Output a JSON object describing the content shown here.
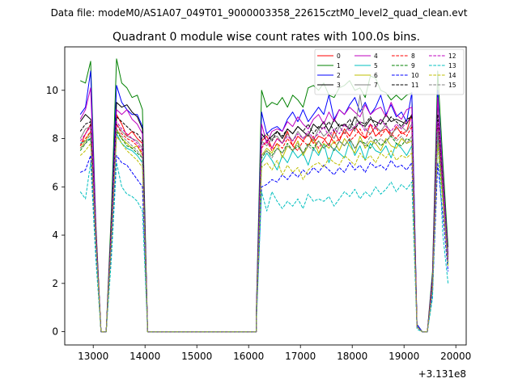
{
  "figure": {
    "suptitle": "Data file: modeM0/AS1A07_049T01_9000003358_22615cztM0_level2_quad_clean.evt",
    "offset_text": "+3.131e8"
  },
  "chart_data": {
    "type": "line",
    "title": "Quadrant 0 module wise count rates with 100.0s bins.",
    "xlabel": "",
    "ylabel": "",
    "x_offset": 313100000,
    "xlim": [
      12450,
      20200
    ],
    "ylim": [
      -0.55,
      11.8
    ],
    "xticks": [
      13000,
      14000,
      15000,
      16000,
      17000,
      18000,
      19000,
      20000
    ],
    "xtick_labels": [
      "13000",
      "14000",
      "15000",
      "16000",
      "17000",
      "18000",
      "19000",
      "20000"
    ],
    "yticks": [
      0,
      2,
      4,
      6,
      8,
      10
    ],
    "ytick_labels": [
      "0",
      "2",
      "4",
      "6",
      "8",
      "10"
    ],
    "x_segments": [
      [
        12750,
        12850,
        12950,
        13050,
        13150,
        13250,
        13350,
        13450,
        13550,
        13650,
        13750,
        13850,
        13950,
        14050
      ],
      [
        14050,
        14150,
        14250,
        14350,
        14450,
        14550,
        14650,
        14750,
        14850,
        14950,
        15050,
        15150,
        15250,
        15350,
        15450,
        15550,
        15650,
        15750,
        15850,
        15950,
        16050,
        16150
      ],
      [
        16150,
        16250,
        16350,
        16450,
        16550,
        16650,
        16750,
        16850,
        16950,
        17050,
        17150,
        17250,
        17350,
        17450,
        17550,
        17650,
        17750,
        17850,
        17950,
        18050,
        18150,
        18250,
        18350,
        18450,
        18550,
        18650,
        18750,
        18850,
        18950,
        19050,
        19150,
        19250,
        19350,
        19450,
        19550,
        19650,
        19750,
        19850
      ]
    ],
    "legend": {
      "location": "upper right",
      "ncol": 4
    },
    "series": [
      {
        "name": "0",
        "color": "#ff0000",
        "dash": "solid",
        "seg1": [
          7.7,
          8.2,
          8.6,
          4.0,
          0.0,
          0.0,
          4.0,
          9.0,
          8.6,
          8.1,
          8.3,
          8.0,
          7.8,
          0.0
        ],
        "seg3": [
          0.6,
          7.9,
          8.1,
          7.6,
          8.0,
          7.8,
          8.3,
          7.7,
          8.1,
          7.9,
          8.2,
          7.8,
          8.1,
          8.0,
          7.7,
          8.3,
          7.9,
          8.4,
          8.1,
          8.5,
          8.2,
          8.0,
          8.6,
          8.1,
          8.3,
          8.4,
          8.1,
          8.5,
          8.2,
          8.3,
          9.0,
          0.2,
          0.0,
          0.0,
          2.0,
          8.6,
          6.0,
          3.0
        ]
      },
      {
        "name": "1",
        "color": "#008000",
        "dash": "solid",
        "seg1": [
          10.4,
          10.3,
          11.2,
          4.5,
          0.0,
          0.0,
          5.0,
          11.3,
          10.3,
          10.1,
          9.7,
          9.8,
          9.2,
          0.0
        ],
        "seg3": [
          1.0,
          10.0,
          9.3,
          9.5,
          9.4,
          9.7,
          9.3,
          9.8,
          9.6,
          9.3,
          10.1,
          10.2,
          10.0,
          10.3,
          9.8,
          9.7,
          10.1,
          10.2,
          10.4,
          10.0,
          10.1,
          9.7,
          10.6,
          10.5,
          10.0,
          9.9,
          9.6,
          9.8,
          9.6,
          9.8,
          9.9,
          0.3,
          0.0,
          0.0,
          2.5,
          10.8,
          7.0,
          3.5
        ]
      },
      {
        "name": "2",
        "color": "#0000ff",
        "dash": "solid",
        "seg1": [
          9.0,
          9.3,
          10.8,
          4.3,
          0.0,
          0.0,
          4.5,
          10.2,
          9.5,
          9.2,
          9.0,
          9.0,
          8.5,
          0.0
        ],
        "seg3": [
          0.9,
          9.1,
          8.2,
          8.4,
          8.5,
          8.3,
          8.8,
          9.1,
          8.7,
          9.2,
          8.7,
          9.0,
          9.3,
          9.0,
          9.8,
          8.8,
          9.2,
          9.0,
          9.4,
          9.7,
          9.1,
          9.5,
          9.0,
          9.3,
          9.8,
          9.0,
          9.4,
          8.9,
          9.1,
          8.7,
          9.9,
          0.3,
          0.0,
          0.0,
          2.3,
          10.0,
          6.5,
          3.2
        ]
      },
      {
        "name": "3",
        "color": "#000000",
        "dash": "solid",
        "seg1": [
          8.7,
          9.0,
          8.8,
          4.2,
          0.0,
          0.0,
          4.4,
          9.5,
          9.3,
          9.4,
          9.1,
          8.9,
          8.4,
          0.0
        ],
        "seg3": [
          0.8,
          8.2,
          7.9,
          8.1,
          8.3,
          8.0,
          8.4,
          8.2,
          8.5,
          8.3,
          8.1,
          8.6,
          8.4,
          8.7,
          8.3,
          8.8,
          8.5,
          8.6,
          8.4,
          8.9,
          8.6,
          8.5,
          8.8,
          8.7,
          8.6,
          9.0,
          8.7,
          8.8,
          8.7,
          8.6,
          9.0,
          0.2,
          0.0,
          0.0,
          2.2,
          9.6,
          6.3,
          3.1
        ]
      },
      {
        "name": "4",
        "color": "#bf00bf",
        "dash": "solid",
        "seg1": [
          8.8,
          9.2,
          10.1,
          4.3,
          0.0,
          0.0,
          4.4,
          9.2,
          9.0,
          9.2,
          8.8,
          8.6,
          8.2,
          0.0
        ],
        "seg3": [
          0.8,
          8.6,
          7.8,
          8.3,
          8.4,
          8.3,
          8.7,
          8.5,
          8.9,
          8.6,
          8.4,
          8.8,
          9.0,
          8.6,
          9.1,
          8.7,
          9.2,
          9.0,
          9.3,
          9.1,
          8.9,
          9.4,
          9.0,
          9.2,
          9.3,
          8.9,
          9.5,
          9.0,
          8.8,
          9.2,
          9.3,
          0.2,
          0.0,
          0.0,
          2.2,
          9.7,
          6.4,
          3.1
        ]
      },
      {
        "name": "5",
        "color": "#00bfbf",
        "dash": "solid",
        "seg1": [
          7.8,
          7.9,
          8.0,
          3.8,
          0.0,
          0.0,
          3.8,
          8.2,
          7.8,
          7.6,
          7.5,
          7.3,
          7.0,
          0.0
        ],
        "seg3": [
          0.6,
          7.0,
          7.4,
          7.1,
          6.7,
          7.3,
          7.0,
          7.5,
          7.2,
          7.4,
          6.9,
          7.6,
          7.3,
          7.8,
          7.0,
          7.6,
          7.4,
          7.2,
          7.9,
          7.3,
          7.7,
          7.1,
          7.8,
          7.5,
          7.4,
          7.7,
          7.2,
          7.8,
          7.6,
          7.3,
          7.7,
          0.2,
          0.0,
          0.0,
          1.8,
          8.0,
          5.5,
          2.8
        ]
      },
      {
        "name": "6",
        "color": "#bfbf00",
        "dash": "solid",
        "seg1": [
          7.6,
          7.9,
          8.3,
          3.9,
          0.0,
          0.0,
          3.9,
          8.4,
          8.0,
          7.8,
          7.6,
          7.7,
          7.3,
          0.0
        ],
        "seg3": [
          0.6,
          7.3,
          7.6,
          7.4,
          7.8,
          7.2,
          7.7,
          7.5,
          7.9,
          7.3,
          7.7,
          8.0,
          7.4,
          7.8,
          7.6,
          7.9,
          7.5,
          8.0,
          7.7,
          7.4,
          8.1,
          7.6,
          7.9,
          7.8,
          7.5,
          8.0,
          7.7,
          7.6,
          8.0,
          7.8,
          7.9,
          0.2,
          0.0,
          0.0,
          1.9,
          8.2,
          5.6,
          2.9
        ]
      },
      {
        "name": "7",
        "color": "#808080",
        "dash": "solid",
        "seg1": [
          8.0,
          8.4,
          8.5,
          4.0,
          0.0,
          0.0,
          4.1,
          8.6,
          8.3,
          8.1,
          8.0,
          7.9,
          7.6,
          0.0
        ],
        "seg3": [
          0.7,
          7.9,
          7.7,
          8.0,
          8.1,
          7.8,
          8.2,
          7.9,
          8.3,
          8.0,
          8.2,
          7.9,
          8.4,
          8.1,
          8.3,
          8.0,
          8.5,
          8.2,
          8.6,
          8.3,
          9.8,
          8.4,
          8.2,
          8.5,
          8.3,
          8.6,
          8.2,
          8.4,
          8.5,
          8.3,
          8.6,
          0.2,
          0.0,
          0.0,
          2.0,
          8.8,
          5.9,
          3.0
        ]
      },
      {
        "name": "8",
        "color": "#ff0000",
        "dash": "dashed",
        "seg1": [
          7.7,
          8.0,
          8.3,
          4.0,
          0.0,
          0.0,
          4.0,
          8.6,
          8.2,
          8.0,
          7.9,
          7.7,
          7.4,
          0.0
        ],
        "seg3": [
          0.6,
          7.6,
          7.9,
          7.5,
          7.8,
          7.6,
          8.0,
          7.7,
          7.5,
          7.9,
          7.7,
          8.1,
          7.6,
          7.9,
          8.2,
          7.8,
          8.0,
          8.3,
          7.9,
          8.1,
          8.4,
          8.0,
          8.2,
          8.5,
          8.1,
          8.4,
          8.2,
          8.0,
          8.3,
          8.1,
          8.5,
          0.2,
          0.0,
          0.0,
          2.0,
          8.5,
          5.8,
          2.9
        ]
      },
      {
        "name": "9",
        "color": "#008000",
        "dash": "dashed",
        "seg1": [
          7.5,
          7.8,
          8.0,
          3.8,
          0.0,
          0.0,
          3.9,
          8.3,
          8.0,
          7.7,
          7.6,
          7.4,
          7.2,
          0.0
        ],
        "seg3": [
          0.6,
          7.2,
          7.5,
          7.3,
          7.6,
          7.4,
          7.8,
          7.5,
          7.7,
          7.4,
          7.8,
          7.6,
          7.9,
          7.6,
          7.8,
          7.5,
          7.9,
          7.7,
          8.0,
          7.6,
          7.9,
          7.8,
          7.6,
          8.0,
          7.7,
          7.9,
          8.1,
          7.8,
          7.7,
          8.0,
          7.9,
          0.2,
          0.0,
          0.0,
          1.9,
          8.2,
          5.6,
          2.8
        ]
      },
      {
        "name": "10",
        "color": "#0000ff",
        "dash": "dashed",
        "seg1": [
          6.6,
          6.7,
          7.3,
          3.4,
          0.0,
          0.0,
          3.4,
          7.3,
          7.0,
          6.9,
          6.6,
          6.3,
          6.0,
          0.0
        ],
        "seg3": [
          0.5,
          6.0,
          6.1,
          6.3,
          6.2,
          6.5,
          6.3,
          6.6,
          6.4,
          6.7,
          6.5,
          6.8,
          6.6,
          6.9,
          6.7,
          6.5,
          6.8,
          6.6,
          7.0,
          6.7,
          6.9,
          6.6,
          7.0,
          6.8,
          6.9,
          6.7,
          7.1,
          6.8,
          6.9,
          6.7,
          7.0,
          0.2,
          0.0,
          0.0,
          1.6,
          7.0,
          4.8,
          2.5
        ]
      },
      {
        "name": "11",
        "color": "#000000",
        "dash": "dashed",
        "seg1": [
          8.3,
          8.6,
          8.7,
          4.1,
          0.0,
          0.0,
          4.2,
          8.9,
          8.7,
          8.5,
          8.3,
          8.2,
          7.9,
          0.0
        ],
        "seg3": [
          0.7,
          8.0,
          8.2,
          7.9,
          8.3,
          8.1,
          8.4,
          8.2,
          8.5,
          8.3,
          8.6,
          8.2,
          8.5,
          8.4,
          8.7,
          8.3,
          8.6,
          8.5,
          8.8,
          8.4,
          8.7,
          8.6,
          8.9,
          8.5,
          8.8,
          8.6,
          8.9,
          8.7,
          8.5,
          8.8,
          8.9,
          0.2,
          0.0,
          0.0,
          2.1,
          9.0,
          6.0,
          3.0
        ]
      },
      {
        "name": "12",
        "color": "#bf00bf",
        "dash": "dashed",
        "seg1": [
          7.9,
          8.2,
          8.5,
          4.0,
          0.0,
          0.0,
          4.1,
          8.7,
          8.4,
          8.2,
          8.0,
          7.8,
          7.5,
          0.0
        ],
        "seg3": [
          0.6,
          7.7,
          7.9,
          7.6,
          8.0,
          7.8,
          8.1,
          7.9,
          8.2,
          8.0,
          8.3,
          8.0,
          8.2,
          8.5,
          8.1,
          8.4,
          8.2,
          8.6,
          8.3,
          8.5,
          8.7,
          8.3,
          8.6,
          8.4,
          8.8,
          8.5,
          8.3,
          8.6,
          8.4,
          8.7,
          8.8,
          0.2,
          0.0,
          0.0,
          2.0,
          8.7,
          5.9,
          2.9
        ]
      },
      {
        "name": "13",
        "color": "#00bfbf",
        "dash": "dashed",
        "seg1": [
          5.8,
          5.5,
          7.0,
          3.0,
          0.0,
          0.0,
          3.0,
          7.0,
          6.0,
          5.7,
          5.6,
          5.4,
          5.0,
          0.0
        ],
        "seg3": [
          0.4,
          5.8,
          5.0,
          5.8,
          5.4,
          5.1,
          5.4,
          5.2,
          5.5,
          5.1,
          5.7,
          5.4,
          5.5,
          5.4,
          5.6,
          5.2,
          5.5,
          5.8,
          5.6,
          5.9,
          5.5,
          5.8,
          5.6,
          6.0,
          5.7,
          5.9,
          6.2,
          5.8,
          6.1,
          5.9,
          6.2,
          0.1,
          0.0,
          0.0,
          1.4,
          8.2,
          4.0,
          2.0
        ]
      },
      {
        "name": "14",
        "color": "#bfbf00",
        "dash": "dashed",
        "seg1": [
          7.3,
          7.5,
          7.8,
          3.7,
          0.0,
          0.0,
          3.7,
          8.1,
          7.8,
          7.5,
          7.3,
          7.1,
          6.8,
          0.0
        ],
        "seg3": [
          0.6,
          6.8,
          7.0,
          6.7,
          7.1,
          6.5,
          6.9,
          6.6,
          6.8,
          6.3,
          6.7,
          6.9,
          7.0,
          6.8,
          7.2,
          7.0,
          6.9,
          7.3,
          7.1,
          6.9,
          7.4,
          7.1,
          7.3,
          7.0,
          7.4,
          7.2,
          7.5,
          7.1,
          7.3,
          7.2,
          7.4,
          0.2,
          0.0,
          0.0,
          1.8,
          7.8,
          5.3,
          2.7
        ]
      },
      {
        "name": "15",
        "color": "#808080",
        "dash": "dashed",
        "seg1": [
          7.6,
          7.8,
          8.2,
          3.9,
          0.0,
          0.0,
          3.9,
          8.4,
          8.1,
          7.9,
          7.7,
          7.5,
          7.2,
          0.0
        ],
        "seg3": [
          0.6,
          7.3,
          7.5,
          7.2,
          7.6,
          7.4,
          7.7,
          7.5,
          7.8,
          7.4,
          7.7,
          7.5,
          7.9,
          7.6,
          7.8,
          7.5,
          7.9,
          7.7,
          8.0,
          7.6,
          7.9,
          7.7,
          8.1,
          7.8,
          8.0,
          7.8,
          8.2,
          7.9,
          8.1,
          7.8,
          8.1,
          0.2,
          0.0,
          0.0,
          1.9,
          8.3,
          5.7,
          2.9
        ]
      }
    ]
  }
}
